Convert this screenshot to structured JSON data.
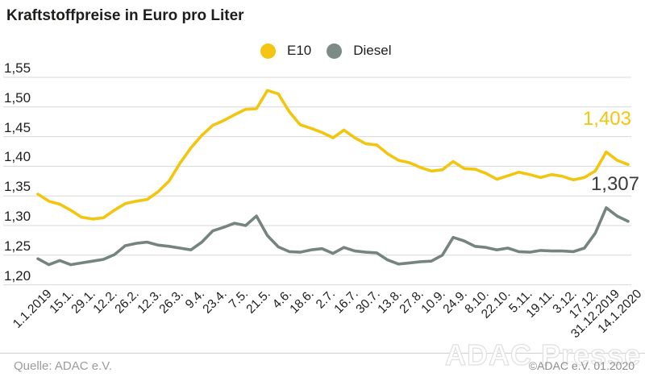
{
  "title": "Kraftstoffpreise in Euro pro Liter",
  "legend": {
    "e10": {
      "label": "E10",
      "color": "#F4C512"
    },
    "diesel": {
      "label": "Diesel",
      "color": "#7C8C85"
    }
  },
  "annotations": {
    "e10_end_value": "1,403",
    "diesel_end_value": "1,307"
  },
  "footer": {
    "source": "Quelle: ADAC e.V.",
    "watermark": "ADAC Presse",
    "copyright": "©ADAC e.V. 01.2020"
  },
  "chart_data": {
    "type": "line",
    "title": "Kraftstoffpreise in Euro pro Liter",
    "ylabel": "Euro pro Liter",
    "ylim": [
      1.2,
      1.55
    ],
    "grid": "horizontal",
    "legend_position": "top-center",
    "y_tick_labels": [
      "1,55",
      "1,50",
      "1,45",
      "1,40",
      "1,35",
      "1,30",
      "1,25",
      "1,20"
    ],
    "y_tick_values": [
      1.55,
      1.5,
      1.45,
      1.4,
      1.35,
      1.3,
      1.25,
      1.2
    ],
    "x_labels": [
      "1.1.2019",
      "15.1.",
      "29.1.",
      "12.2.",
      "26.2.",
      "12.3.",
      "26.3.",
      "9.4.",
      "23.4.",
      "7.5.",
      "21.5.",
      "4.6.",
      "18.6.",
      "2.7.",
      "16.7.",
      "30.7.",
      "13.8.",
      "27.8.",
      "10.9.",
      "24.9.",
      "8.10.",
      "22.10.",
      "5.11.",
      "19.11.",
      "3.12.",
      "17.12.",
      "31.12.2019",
      "14.1.2020"
    ],
    "points_per_label": 2,
    "series": [
      {
        "name": "E10",
        "color": "#F2C50F",
        "end_label": "1,403",
        "values": [
          1.353,
          1.341,
          1.336,
          1.326,
          1.314,
          1.311,
          1.313,
          1.326,
          1.337,
          1.341,
          1.344,
          1.357,
          1.375,
          1.405,
          1.431,
          1.452,
          1.469,
          1.477,
          1.487,
          1.496,
          1.497,
          1.528,
          1.522,
          1.492,
          1.47,
          1.464,
          1.457,
          1.448,
          1.461,
          1.448,
          1.438,
          1.436,
          1.421,
          1.41,
          1.406,
          1.398,
          1.392,
          1.394,
          1.408,
          1.396,
          1.395,
          1.388,
          1.378,
          1.384,
          1.39,
          1.386,
          1.381,
          1.386,
          1.383,
          1.377,
          1.381,
          1.392,
          1.424,
          1.41,
          1.403
        ]
      },
      {
        "name": "Diesel",
        "color": "#75847D",
        "end_label": "1,307",
        "values": [
          1.244,
          1.234,
          1.241,
          1.234,
          1.237,
          1.24,
          1.243,
          1.251,
          1.266,
          1.27,
          1.272,
          1.267,
          1.265,
          1.262,
          1.259,
          1.272,
          1.291,
          1.297,
          1.304,
          1.3,
          1.316,
          1.283,
          1.264,
          1.256,
          1.255,
          1.259,
          1.261,
          1.253,
          1.263,
          1.257,
          1.255,
          1.254,
          1.242,
          1.235,
          1.237,
          1.239,
          1.24,
          1.25,
          1.28,
          1.274,
          1.265,
          1.263,
          1.259,
          1.262,
          1.256,
          1.255,
          1.258,
          1.257,
          1.257,
          1.256,
          1.262,
          1.287,
          1.33,
          1.316,
          1.307
        ]
      }
    ]
  }
}
